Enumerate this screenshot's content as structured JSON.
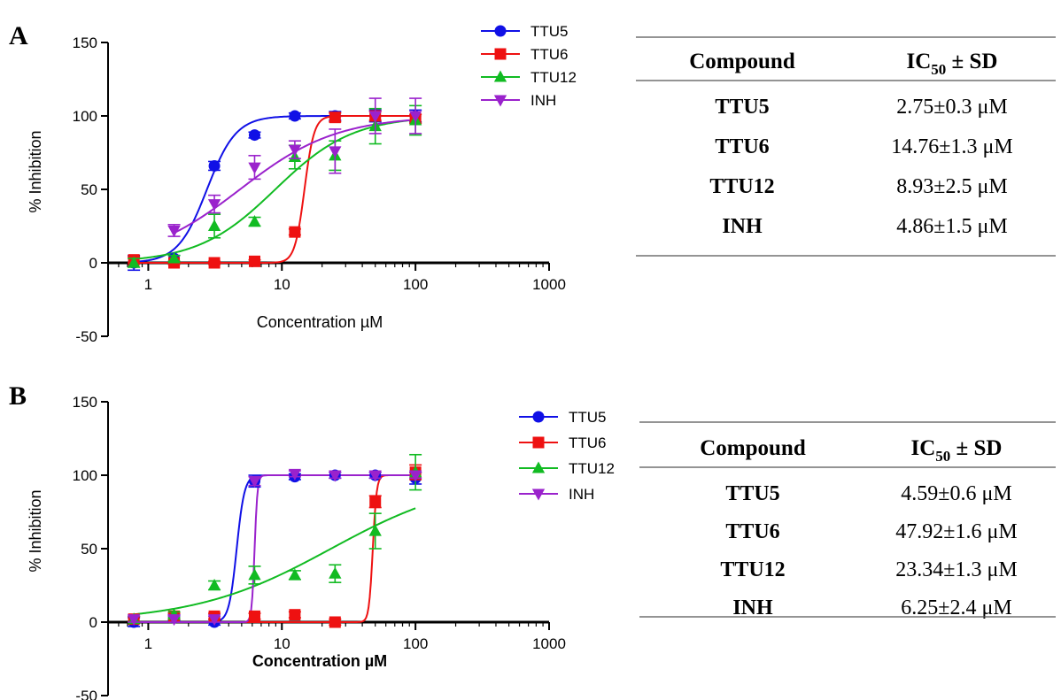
{
  "chart_data": [
    {
      "panel": "A",
      "type": "line",
      "xscale": "log",
      "xlabel": "Concentration µM",
      "ylabel": "% Inhibition",
      "xlim": [
        0.5,
        1000
      ],
      "ylim": [
        -50,
        150
      ],
      "xticks": [
        "1",
        "10",
        "100",
        "1000"
      ],
      "yticks": [
        "-50",
        "0",
        "50",
        "100",
        "150"
      ],
      "legend": "top-right",
      "series": [
        {
          "name": "TTU5",
          "color": "#1010e6",
          "marker": "circle",
          "x": [
            0.78,
            1.56,
            3.125,
            6.25,
            12.5,
            25,
            50,
            100
          ],
          "y": [
            0,
            3,
            66,
            87,
            100,
            100,
            100,
            100
          ],
          "err": [
            5,
            2,
            3,
            2,
            2,
            3,
            4,
            4
          ],
          "fit": {
            "ic50": 2.75,
            "hill": 4,
            "bottom": 0,
            "top": 100
          }
        },
        {
          "name": "TTU6",
          "color": "#ee1111",
          "marker": "square",
          "x": [
            0.78,
            1.56,
            3.125,
            6.25,
            12.5,
            25,
            50,
            100
          ],
          "y": [
            2,
            0,
            0,
            1,
            21,
            99,
            100,
            98
          ],
          "err": [
            2,
            1,
            1,
            1,
            2,
            3,
            3,
            3
          ],
          "fit": {
            "ic50": 14.76,
            "hill": 12,
            "bottom": 0,
            "top": 100
          }
        },
        {
          "name": "TTU12",
          "color": "#11bb22",
          "marker": "triangle",
          "x": [
            0.78,
            1.56,
            3.125,
            6.25,
            12.5,
            25,
            50,
            100
          ],
          "y": [
            0,
            3,
            25,
            28,
            72,
            73,
            93,
            97
          ],
          "err": [
            3,
            2,
            8,
            3,
            8,
            10,
            12,
            10
          ],
          "fit": {
            "ic50": 8.93,
            "hill": 1.5,
            "bottom": 0,
            "top": 100
          }
        },
        {
          "name": "INH",
          "color": "#9a22cc",
          "marker": "triangle-down",
          "x": [
            1.56,
            3.125,
            6.25,
            12.5,
            25,
            50,
            100
          ],
          "y": [
            22,
            40,
            65,
            77,
            76,
            100,
            100
          ],
          "err": [
            4,
            6,
            8,
            6,
            15,
            12,
            12
          ],
          "fit": {
            "ic50": 4.86,
            "hill": 1.2,
            "bottom": 0,
            "top": 100
          }
        }
      ]
    },
    {
      "panel": "B",
      "type": "line",
      "xscale": "log",
      "xlabel": "Concentration µM",
      "ylabel": "% Inhibition",
      "xlim": [
        0.5,
        1000
      ],
      "ylim": [
        -50,
        150
      ],
      "xticks": [
        "1",
        "10",
        "100",
        "1000"
      ],
      "yticks": [
        "-50",
        "0",
        "50",
        "100",
        "150"
      ],
      "legend": "top-right",
      "series": [
        {
          "name": "TTU5",
          "color": "#1010e6",
          "marker": "circle",
          "x": [
            0.78,
            1.56,
            3.125,
            6.25,
            12.5,
            25,
            50,
            100
          ],
          "y": [
            0,
            3,
            0,
            96,
            99,
            100,
            100,
            98
          ],
          "err": [
            3,
            2,
            2,
            4,
            2,
            2,
            2,
            4
          ],
          "fit": {
            "ic50": 4.59,
            "hill": 15,
            "bottom": 0,
            "top": 100
          }
        },
        {
          "name": "TTU6",
          "color": "#ee1111",
          "marker": "square",
          "x": [
            0.78,
            1.56,
            3.125,
            6.25,
            12.5,
            25,
            50,
            100
          ],
          "y": [
            2,
            4,
            4,
            4,
            5,
            0,
            82,
            102
          ],
          "err": [
            2,
            2,
            2,
            2,
            2,
            2,
            4,
            5
          ],
          "fit": {
            "ic50": 47.92,
            "hill": 30,
            "bottom": 0,
            "top": 100
          }
        },
        {
          "name": "TTU12",
          "color": "#11bb22",
          "marker": "triangle",
          "x": [
            0.78,
            1.56,
            3.125,
            6.25,
            12.5,
            25,
            50,
            100
          ],
          "y": [
            2,
            5,
            25,
            32,
            32,
            33,
            62,
            102
          ],
          "err": [
            2,
            2,
            3,
            6,
            3,
            6,
            12,
            12
          ],
          "fit": {
            "ic50": 23.34,
            "hill": 0.85,
            "bottom": 0,
            "top": 100
          }
        },
        {
          "name": "INH",
          "color": "#9a22cc",
          "marker": "triangle-down",
          "x": [
            0.78,
            1.56,
            3.125,
            6.25,
            12.5,
            25,
            50,
            100
          ],
          "y": [
            2,
            2,
            2,
            96,
            101,
            100,
            100,
            100
          ],
          "err": [
            2,
            2,
            2,
            3,
            2,
            2,
            2,
            2
          ],
          "fit": {
            "ic50": 6.25,
            "hill": 40,
            "bottom": 0,
            "top": 100
          }
        }
      ]
    }
  ],
  "tables": [
    {
      "header": {
        "compound": "Compound",
        "ic50_main": "IC",
        "ic50_sub": "50",
        "ic50_rest": " ± SD"
      },
      "rows": [
        {
          "compound": "TTU5",
          "value": "2.75±0.3  μM"
        },
        {
          "compound": "TTU6",
          "value": "14.76±1.3  μM"
        },
        {
          "compound": "TTU12",
          "value": "8.93±2.5  μM"
        },
        {
          "compound": "INH",
          "value": "4.86±1.5  μM"
        }
      ]
    },
    {
      "header": {
        "compound": "Compound",
        "ic50_main": "IC",
        "ic50_sub": "50",
        "ic50_rest": " ± SD"
      },
      "rows": [
        {
          "compound": "TTU5",
          "value": "4.59±0.6  μM"
        },
        {
          "compound": "TTU6",
          "value": "47.92±1.6  μM"
        },
        {
          "compound": "TTU12",
          "value": "23.34±1.3  μM"
        },
        {
          "compound": "INH",
          "value": "6.25±2.4  μM"
        }
      ]
    }
  ]
}
